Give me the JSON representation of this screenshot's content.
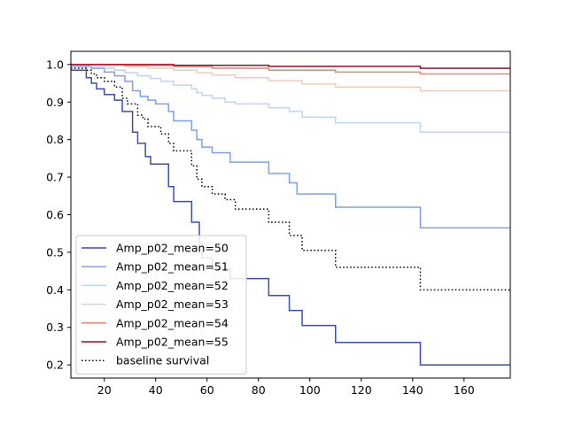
{
  "chart_data": {
    "type": "line",
    "title": "",
    "xlabel": "",
    "ylabel": "",
    "xlim": [
      7,
      178
    ],
    "ylim": [
      0.165,
      1.035
    ],
    "xticks": [
      20,
      40,
      60,
      80,
      100,
      120,
      140,
      160
    ],
    "yticks": [
      0.2,
      0.3,
      0.4,
      0.5,
      0.6,
      0.7,
      0.8,
      0.9,
      1.0
    ],
    "xtick_labels": [
      "20",
      "40",
      "60",
      "80",
      "100",
      "120",
      "140",
      "160"
    ],
    "ytick_labels": [
      "0.2",
      "0.3",
      "0.4",
      "0.5",
      "0.6",
      "0.7",
      "0.8",
      "0.9",
      "1.0"
    ],
    "step": "post",
    "grid": false,
    "legend_position": "lower-left",
    "series": [
      {
        "name": "Amp_p02_mean=50",
        "color": "#3b4cc0",
        "style": "solid",
        "x": [
          7,
          13,
          15,
          17,
          20,
          24,
          27,
          31,
          33,
          36,
          38,
          40,
          45,
          47,
          54,
          57,
          58,
          62,
          69,
          84,
          92,
          97,
          110,
          143,
          178
        ],
        "y": [
          0.985,
          0.965,
          0.95,
          0.935,
          0.92,
          0.905,
          0.875,
          0.82,
          0.79,
          0.755,
          0.735,
          0.735,
          0.675,
          0.635,
          0.58,
          0.525,
          0.485,
          0.455,
          0.43,
          0.385,
          0.345,
          0.305,
          0.26,
          0.2,
          0.2
        ]
      },
      {
        "name": "Amp_p02_mean=51",
        "color": "#7b9ff9",
        "style": "solid",
        "x": [
          7,
          15,
          20,
          24,
          28,
          31,
          34,
          37,
          40,
          45,
          47,
          54,
          56,
          58,
          62,
          69,
          74,
          84,
          92,
          95,
          110,
          143,
          178
        ],
        "y": [
          0.995,
          0.99,
          0.98,
          0.97,
          0.955,
          0.93,
          0.915,
          0.905,
          0.895,
          0.875,
          0.85,
          0.825,
          0.8,
          0.78,
          0.765,
          0.74,
          0.74,
          0.71,
          0.685,
          0.655,
          0.62,
          0.565,
          0.565
        ]
      },
      {
        "name": "Amp_p02_mean=52",
        "color": "#c0d4f5",
        "style": "solid",
        "x": [
          7,
          15,
          20,
          24,
          28,
          33,
          38,
          42,
          47,
          54,
          56,
          58,
          62,
          67,
          71,
          84,
          92,
          97,
          110,
          143,
          178
        ],
        "y": [
          0.998,
          0.995,
          0.99,
          0.985,
          0.978,
          0.97,
          0.963,
          0.955,
          0.945,
          0.935,
          0.925,
          0.918,
          0.91,
          0.9,
          0.895,
          0.885,
          0.875,
          0.86,
          0.845,
          0.82,
          0.82
        ]
      },
      {
        "name": "Amp_p02_mean=53",
        "color": "#f2cbb7",
        "style": "solid",
        "x": [
          7,
          20,
          28,
          37,
          47,
          56,
          62,
          71,
          84,
          97,
          110,
          143,
          178
        ],
        "y": [
          1.0,
          0.998,
          0.995,
          0.99,
          0.985,
          0.978,
          0.972,
          0.965,
          0.957,
          0.948,
          0.94,
          0.93,
          0.93
        ]
      },
      {
        "name": "Amp_p02_mean=54",
        "color": "#ee8468",
        "style": "solid",
        "x": [
          7,
          28,
          47,
          62,
          84,
          110,
          143,
          178
        ],
        "y": [
          1.0,
          0.998,
          0.995,
          0.99,
          0.985,
          0.98,
          0.975,
          0.975
        ]
      },
      {
        "name": "Amp_p02_mean=55",
        "color": "#b40426",
        "style": "solid",
        "x": [
          7,
          47,
          84,
          143,
          178
        ],
        "y": [
          1.0,
          0.998,
          0.995,
          0.99,
          0.99
        ]
      },
      {
        "name": "baseline survival",
        "color": "#000000",
        "style": "dotted",
        "x": [
          7,
          13,
          15,
          17,
          20,
          22,
          24,
          27,
          29,
          33,
          35,
          37,
          40,
          42,
          45,
          47,
          54,
          56,
          58,
          62,
          67,
          71,
          84,
          92,
          97,
          110,
          143,
          178
        ],
        "y": [
          0.99,
          0.985,
          0.975,
          0.965,
          0.955,
          0.955,
          0.94,
          0.91,
          0.895,
          0.865,
          0.855,
          0.835,
          0.835,
          0.815,
          0.79,
          0.77,
          0.73,
          0.695,
          0.675,
          0.655,
          0.64,
          0.615,
          0.58,
          0.545,
          0.505,
          0.46,
          0.4,
          0.4
        ]
      }
    ]
  }
}
